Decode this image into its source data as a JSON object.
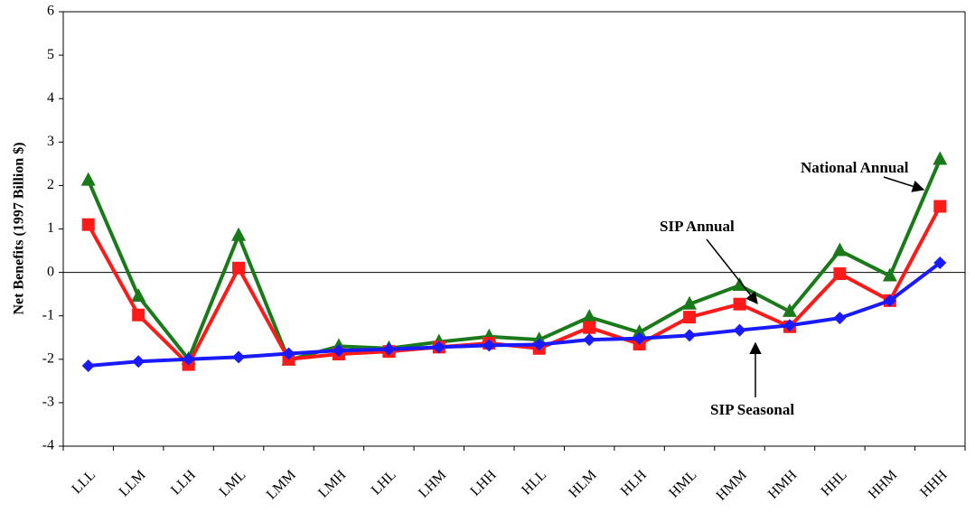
{
  "chart_data": {
    "type": "line",
    "y_label": "Net Benefits (1997 Billion $)",
    "categories": [
      "LLL",
      "LLM",
      "LLH",
      "LML",
      "LMM",
      "LMH",
      "LHL",
      "LHM",
      "LHH",
      "HLL",
      "HLM",
      "HLH",
      "HML",
      "HMM",
      "HMH",
      "HHL",
      "HHM",
      "HHH"
    ],
    "series": [
      {
        "name": "National Annual",
        "color": "#1a7a1a",
        "marker": "triangle",
        "values": [
          2.12,
          -0.55,
          -2.0,
          0.85,
          -2.02,
          -1.7,
          -1.75,
          -1.6,
          -1.48,
          -1.55,
          -1.03,
          -1.38,
          -0.73,
          -0.3,
          -0.9,
          0.5,
          -0.08,
          2.6
        ]
      },
      {
        "name": "SIP Annual",
        "color": "#ff1a1a",
        "marker": "square",
        "values": [
          1.1,
          -0.98,
          -2.12,
          0.1,
          -2.0,
          -1.88,
          -1.82,
          -1.72,
          -1.63,
          -1.75,
          -1.27,
          -1.65,
          -1.03,
          -0.73,
          -1.25,
          -0.03,
          -0.65,
          1.52
        ]
      },
      {
        "name": "SIP Seasonal",
        "color": "#1a1aff",
        "marker": "diamond",
        "values": [
          -2.15,
          -2.05,
          -2.0,
          -1.95,
          -1.87,
          -1.8,
          -1.77,
          -1.72,
          -1.68,
          -1.66,
          -1.55,
          -1.52,
          -1.45,
          -1.33,
          -1.22,
          -1.05,
          -0.65,
          0.22
        ]
      }
    ],
    "ylim": [
      -4,
      6
    ],
    "yticks": [
      -4,
      -3,
      -2,
      -1,
      0,
      1,
      2,
      3,
      4,
      5,
      6
    ],
    "grid": false
  }
}
